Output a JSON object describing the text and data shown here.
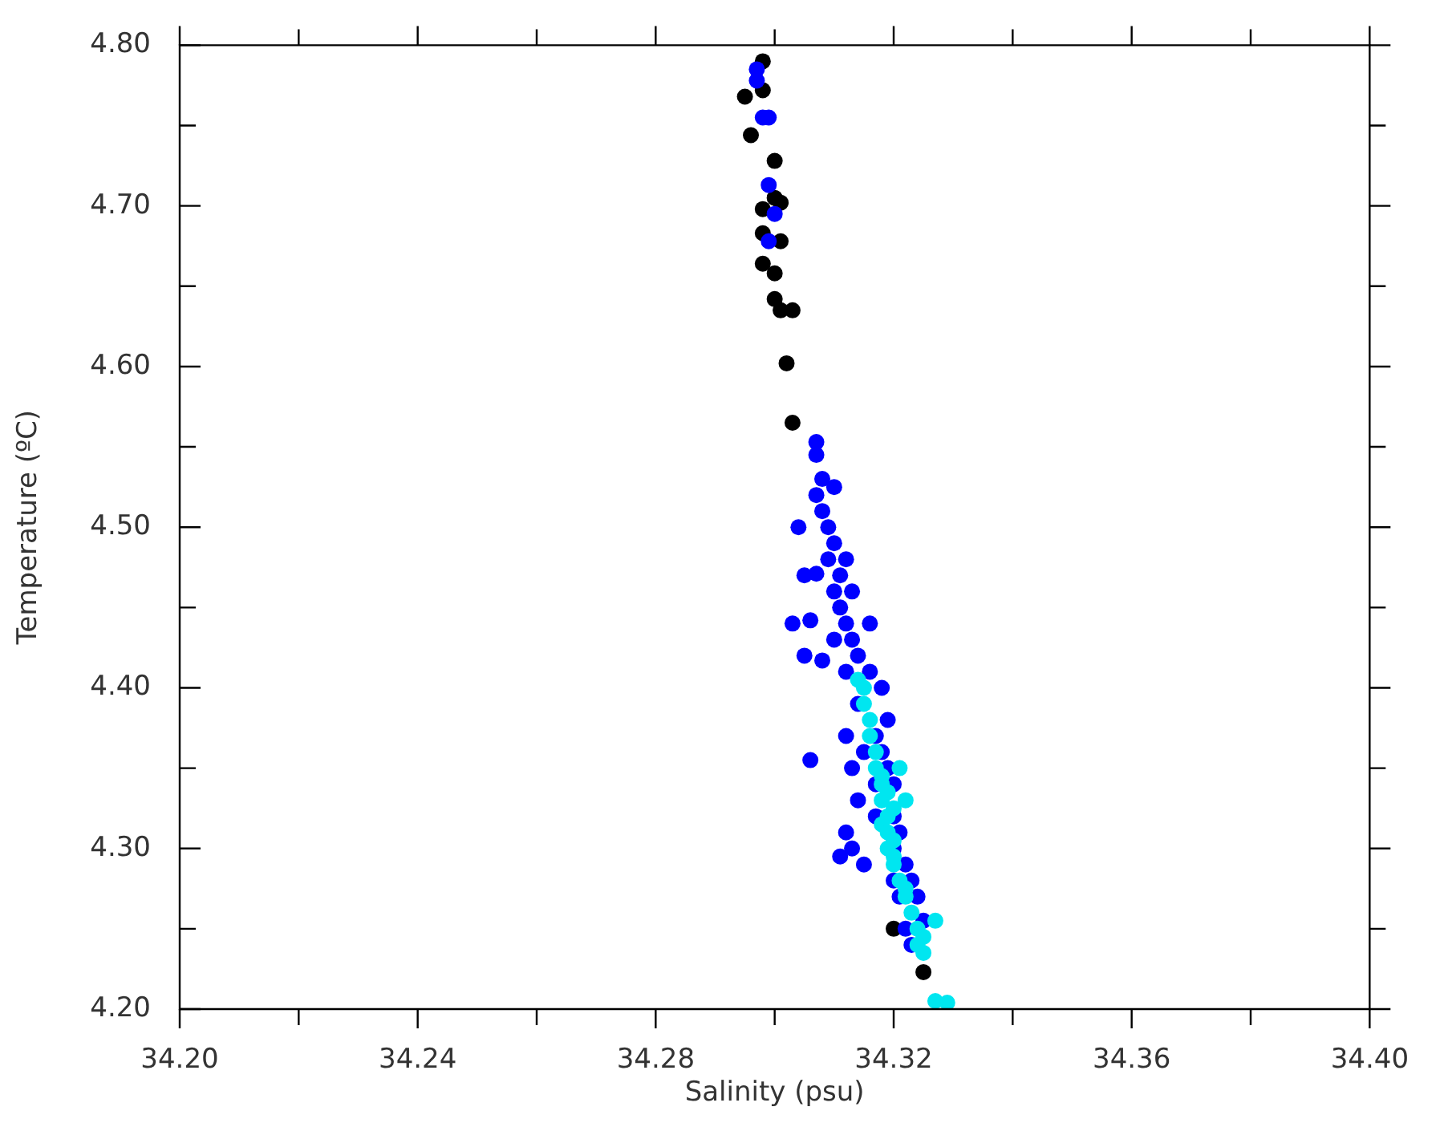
{
  "chart_data": {
    "type": "scatter",
    "xlabel": "Salinity (psu)",
    "ylabel": "Temperature (ºC)",
    "grid": false,
    "legend": false,
    "marker": "circle",
    "xlim": [
      34.2,
      34.4
    ],
    "xticks": [
      {
        "value": 34.2,
        "label": "34.20"
      },
      {
        "value": 34.22,
        "label": null
      },
      {
        "value": 34.24,
        "label": "34.24"
      },
      {
        "value": 34.26,
        "label": null
      },
      {
        "value": 34.28,
        "label": "34.28"
      },
      {
        "value": 34.3,
        "label": null
      },
      {
        "value": 34.32,
        "label": "34.32"
      },
      {
        "value": 34.34,
        "label": null
      },
      {
        "value": 34.36,
        "label": "34.36"
      },
      {
        "value": 34.38,
        "label": null
      },
      {
        "value": 34.4,
        "label": "34.40"
      }
    ],
    "ylim": [
      4.2,
      4.8
    ],
    "yticks": [
      {
        "value": 4.2,
        "label": "4.20"
      },
      {
        "value": 4.25,
        "label": null
      },
      {
        "value": 4.3,
        "label": "4.30"
      },
      {
        "value": 4.35,
        "label": null
      },
      {
        "value": 4.4,
        "label": "4.40"
      },
      {
        "value": 4.45,
        "label": null
      },
      {
        "value": 4.5,
        "label": "4.50"
      },
      {
        "value": 4.55,
        "label": null
      },
      {
        "value": 4.6,
        "label": "4.60"
      },
      {
        "value": 4.65,
        "label": null
      },
      {
        "value": 4.7,
        "label": "4.70"
      },
      {
        "value": 4.75,
        "label": null
      },
      {
        "value": 4.8,
        "label": "4.80"
      }
    ],
    "series": [
      {
        "color": "#000000",
        "x": [
          34.298,
          34.295,
          34.298,
          34.296,
          34.3,
          34.3,
          34.301,
          34.298,
          34.298,
          34.301,
          34.298,
          34.3,
          34.3,
          34.301,
          34.303,
          34.302,
          34.303,
          34.32,
          34.325
        ],
        "values": [
          4.79,
          4.768,
          4.772,
          4.744,
          4.728,
          4.705,
          4.702,
          4.698,
          4.683,
          4.678,
          4.664,
          4.658,
          4.642,
          4.635,
          4.635,
          4.602,
          4.565,
          4.25,
          4.223
        ]
      },
      {
        "color": "#0000ff",
        "x": [
          34.297,
          34.297,
          34.299,
          34.298,
          34.299,
          34.3,
          34.299,
          34.307,
          34.307,
          34.308,
          34.31,
          34.307,
          34.308,
          34.309,
          34.304,
          34.31,
          34.309,
          34.312,
          34.305,
          34.311,
          34.31,
          34.313,
          34.311,
          34.303,
          34.312,
          34.316,
          34.313,
          34.31,
          34.305,
          34.314,
          34.316,
          34.312,
          34.318,
          34.314,
          34.319,
          34.312,
          34.317,
          34.318,
          34.315,
          34.319,
          34.313,
          34.317,
          34.32,
          34.314,
          34.32,
          34.317,
          34.312,
          34.321,
          34.313,
          34.32,
          34.311,
          34.315,
          34.322,
          34.32,
          34.323,
          34.321,
          34.324,
          34.325,
          34.322,
          34.323,
          34.306,
          34.308,
          34.307,
          34.306
        ],
        "values": [
          4.785,
          4.778,
          4.755,
          4.755,
          4.713,
          4.695,
          4.678,
          4.553,
          4.545,
          4.53,
          4.525,
          4.52,
          4.51,
          4.5,
          4.5,
          4.49,
          4.48,
          4.48,
          4.47,
          4.47,
          4.46,
          4.46,
          4.45,
          4.44,
          4.44,
          4.44,
          4.43,
          4.43,
          4.42,
          4.42,
          4.41,
          4.41,
          4.4,
          4.39,
          4.38,
          4.37,
          4.37,
          4.36,
          4.36,
          4.35,
          4.35,
          4.34,
          4.34,
          4.33,
          4.32,
          4.32,
          4.31,
          4.31,
          4.3,
          4.3,
          4.295,
          4.29,
          4.29,
          4.28,
          4.28,
          4.27,
          4.27,
          4.255,
          4.25,
          4.24,
          4.442,
          4.417,
          4.471,
          4.355
        ]
      },
      {
        "color": "#00e6f0",
        "x": [
          34.314,
          34.315,
          34.315,
          34.316,
          34.316,
          34.317,
          34.317,
          34.318,
          34.318,
          34.319,
          34.318,
          34.32,
          34.319,
          34.318,
          34.319,
          34.32,
          34.319,
          34.32,
          34.322,
          34.321,
          34.32,
          34.321,
          34.322,
          34.322,
          34.323,
          34.327,
          34.324,
          34.325,
          34.324,
          34.325,
          34.327,
          34.329
        ],
        "values": [
          4.405,
          4.4,
          4.39,
          4.38,
          4.37,
          4.36,
          4.35,
          4.345,
          4.34,
          4.335,
          4.33,
          4.325,
          4.32,
          4.315,
          4.31,
          4.305,
          4.3,
          4.295,
          4.33,
          4.35,
          4.29,
          4.28,
          4.275,
          4.27,
          4.26,
          4.255,
          4.25,
          4.245,
          4.24,
          4.235,
          4.205,
          4.204
        ]
      }
    ]
  }
}
